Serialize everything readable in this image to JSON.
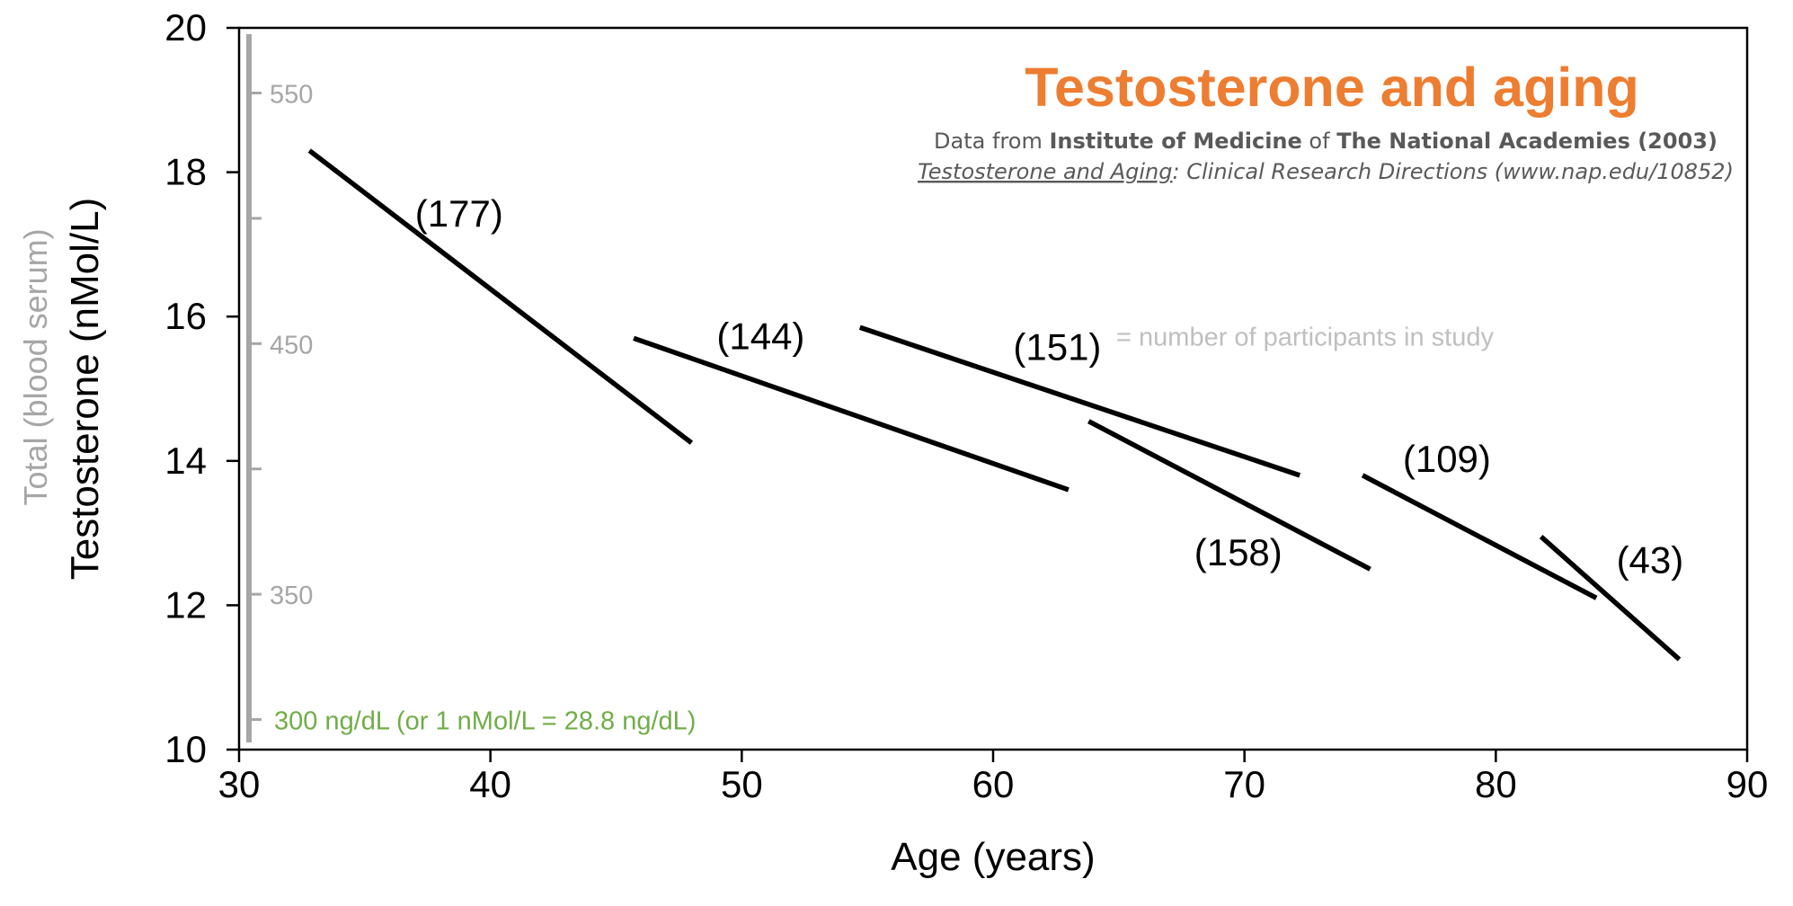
{
  "chart_data": {
    "type": "line",
    "title": "Testosterone and aging",
    "source": {
      "prefix": "Data from ",
      "institute": "Institute of Medicine",
      "of": " of ",
      "academies": "The National Academies (2003)",
      "book_title": "Testosterone and Aging",
      "book_rest": ": Clinical Research Directions (www.nap.edu/10852)"
    },
    "xlabel": "Age (years)",
    "ylabel": "Testosterone (nMol/L)",
    "ylabel_secondary": "Total (blood serum)",
    "xlim": [
      30,
      90
    ],
    "ylim": [
      10,
      20
    ],
    "xticks": [
      "30",
      "40",
      "50",
      "60",
      "70",
      "80",
      "90"
    ],
    "yticks": [
      "10",
      "12",
      "14",
      "16",
      "18",
      "20"
    ],
    "secondary_axis": {
      "unit_note": "300 ng/dL (or 1 nMol/L = 28.8 ng/dL)",
      "conversion_ng_dl_per_nmol_l": 28.8,
      "labeled_ticks": [
        {
          "label": "550",
          "value": 550
        },
        {
          "label": "450",
          "value": 450
        },
        {
          "label": "350",
          "value": 350
        }
      ],
      "minor_ticks": [
        500,
        400,
        300
      ]
    },
    "legend_note": "= number of participants in study",
    "grid": false,
    "colors": {
      "title": "#ED7D31",
      "secondary_axis": "#A6A6A6",
      "unit_note": "#70AD47",
      "legend_note": "#BFBFBF",
      "lines": "#000000"
    },
    "series": [
      {
        "label": "(177)",
        "x": [
          32.8,
          48.0
        ],
        "y": [
          18.3,
          14.25
        ]
      },
      {
        "label": "(144)",
        "x": [
          45.7,
          63.0
        ],
        "y": [
          15.7,
          13.6
        ]
      },
      {
        "label": "(151)",
        "x": [
          54.7,
          72.2
        ],
        "y": [
          15.85,
          13.8
        ]
      },
      {
        "label": "(158)",
        "x": [
          63.8,
          75.0
        ],
        "y": [
          14.55,
          12.5
        ]
      },
      {
        "label": "(109)",
        "x": [
          74.7,
          84.0
        ],
        "y": [
          13.8,
          12.1
        ]
      },
      {
        "label": "(43)",
        "x": [
          81.8,
          87.3
        ],
        "y": [
          12.95,
          11.25
        ]
      }
    ]
  }
}
